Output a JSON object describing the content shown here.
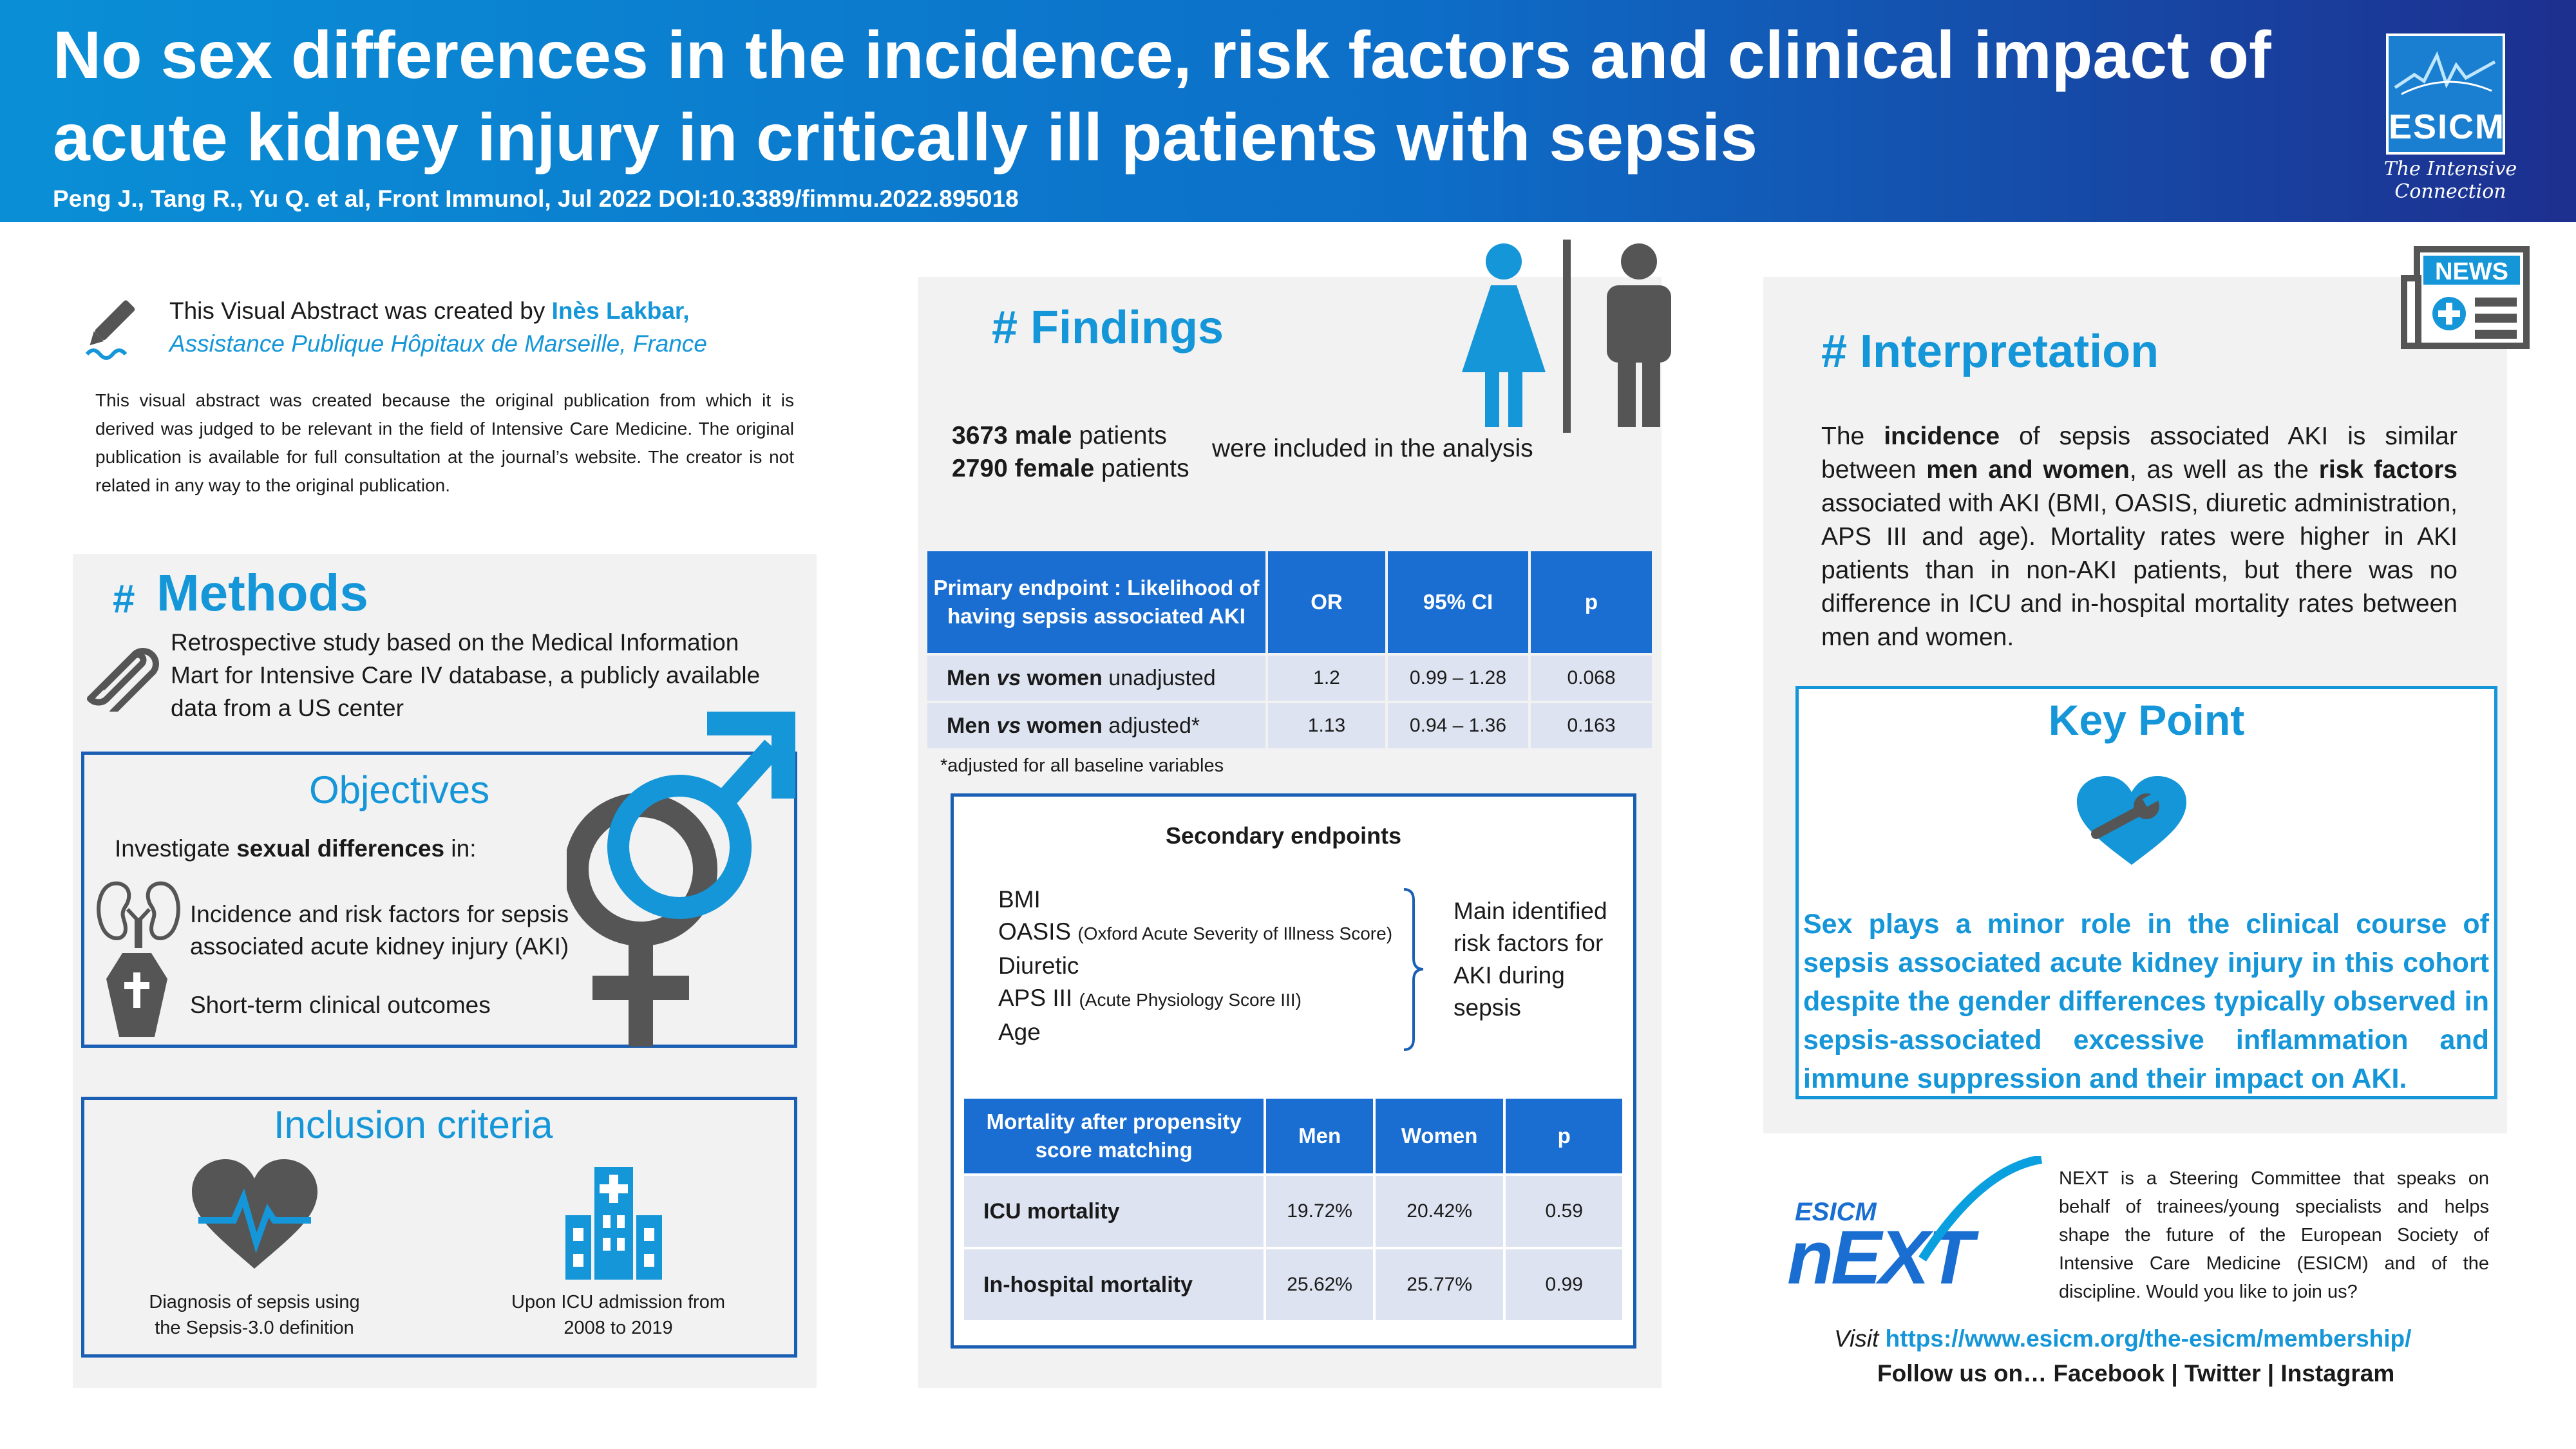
{
  "header": {
    "title": "No sex differences in the incidence, risk factors and clinical impact of acute kidney injury in critically ill patients with sepsis",
    "citation": "Peng J., Tang R., Yu Q. et al, Front Immunol, Jul 2022 DOI:10.3389/fimmu.2022.895018",
    "logo_text": "ESICM",
    "logo_tagline": "The Intensive Connection"
  },
  "creator": {
    "intro": "This Visual Abstract was created by ",
    "name": "Inès Lakbar,",
    "affiliation": "Assistance Publique Hôpitaux de Marseille, France",
    "disclaimer": "This visual abstract was created because the original publication from which it is derived was judged to be relevant in the field of Intensive Care Medicine. The original publication is available for full consultation at the journal’s website. The creator is not related in any way to the original publication."
  },
  "methods": {
    "hash": "#",
    "title": "Methods",
    "text": "Retrospective study based on the Medical Information Mart for Intensive Care IV database, a publicly available data from a US center",
    "objectives": {
      "title": "Objectives",
      "intro_a": "Investigate ",
      "intro_b": "sexual differences",
      "intro_c": " in:",
      "item1": "Incidence and risk factors for sepsis associated acute kidney injury (AKI)",
      "item2": "Short-term clinical outcomes"
    },
    "inclusion": {
      "title": "Inclusion criteria",
      "item1": "Diagnosis of sepsis using the Sepsis-3.0 definition",
      "item2": "Upon ICU admission from 2008 to 2019"
    }
  },
  "findings": {
    "title": "# Findings",
    "male_n": "3673 male",
    "male_rest": " patients",
    "female_n": "2790 female",
    "female_rest": " patients",
    "included": "were included in the analysis",
    "primary_table": {
      "headers": [
        "Primary endpoint : Likelihood of having sepsis associated AKI",
        "OR",
        "95% CI",
        "p"
      ],
      "rows": [
        {
          "a": "Men ",
          "vs": "vs",
          "b": " women",
          "c": " unadjusted",
          "or": "1.2",
          "ci": "0.99 – 1.28",
          "p": "0.068"
        },
        {
          "a": "Men ",
          "vs": "vs",
          "b": " women",
          "c": " adjusted*",
          "or": "1.13",
          "ci": "0.94 – 1.36",
          "p": "0.163"
        }
      ],
      "footnote": "*adjusted for all baseline variables"
    },
    "secondary": {
      "title": "Secondary endpoints",
      "items": [
        {
          "main": "BMI",
          "note": ""
        },
        {
          "main": "OASIS ",
          "note": "(Oxford Acute Severity of Illness Score)"
        },
        {
          "main": "Diuretic",
          "note": ""
        },
        {
          "main": "APS III ",
          "note": "(Acute Physiology Score III)"
        },
        {
          "main": "Age",
          "note": ""
        }
      ],
      "brace_text": "Main identified risk factors for AKI during sepsis"
    },
    "mortality_table": {
      "headers": [
        "Mortality after propensity score matching",
        "Men",
        "Women",
        "p"
      ],
      "rows": [
        {
          "label": "ICU mortality",
          "men": "19.72%",
          "women": "20.42%",
          "p": "0.59"
        },
        {
          "label": "In-hospital mortality",
          "men": "25.62%",
          "women": "25.77%",
          "p": "0.99"
        }
      ]
    }
  },
  "interpretation": {
    "title": "# Interpretation",
    "news_label": "NEWS",
    "p1": "The ",
    "b1": "incidence",
    "p2": " of sepsis associated AKI is similar between ",
    "b2": "men and women",
    "p3": ", as well as the ",
    "b3": "risk factors",
    "p4": " associated with AKI (BMI, OASIS, diuretic administration, APS III and age). Mortality rates were higher in AKI patients than in non-AKI patients, but there was no difference in ICU and in-hospital mortality rates between men and women.",
    "key_point_title": "Key Point",
    "key_point_text": "Sex plays a minor role in the clinical course of sepsis associated acute kidney injury in this cohort despite the gender differences typically observed in sepsis-associated excessive inflammation and immune suppression and their impact on AKI."
  },
  "next": {
    "logo_small": "ESICM",
    "logo_big": "nEXT",
    "text": "NEXT is a Steering Committee that speaks on behalf of trainees/young specialists and helps shape the future of the European Society of Intensive Care Medicine (ESICM) and of the discipline. Would you like to join us?",
    "visit": "Visit ",
    "url": "https://www.esicm.org/the-esicm/membership/",
    "follow": "Follow us on… Facebook | Twitter | Instagram"
  },
  "colors": {
    "accent": "#1496d8",
    "table_header": "#1a6ed1",
    "table_cell": "#dde3f0",
    "panel": "#f2f2f2",
    "dark_icon": "#555555"
  }
}
